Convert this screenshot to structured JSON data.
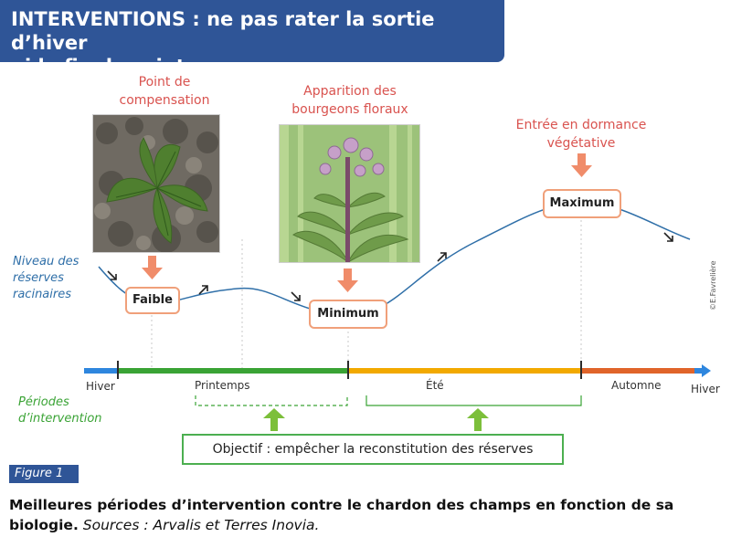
{
  "title": {
    "line1": "INTERVENTIONS : ne pas rater la sortie d’hiver",
    "line2": "ni la fin du printemps"
  },
  "stages": {
    "compensation": {
      "line1": "Point de",
      "line2": "compensation"
    },
    "bourgeons": {
      "line1": "Apparition des",
      "line2": "bourgeons floraux"
    },
    "dormance": {
      "line1": "Entrée en dormance",
      "line2": "végétative"
    }
  },
  "levels": {
    "faible": "Faible",
    "minimum": "Minimum",
    "maximum": "Maximum"
  },
  "reserves_label": {
    "line1": "Niveau des",
    "line2": "réserves",
    "line3": "racinaires"
  },
  "periods_label": {
    "line1": "Périodes",
    "line2": "d’intervention"
  },
  "seasons": {
    "hiver_start": "Hiver",
    "printemps": "Printemps",
    "ete": "Été",
    "automne": "Automne",
    "hiver_end": "Hiver"
  },
  "colors": {
    "winter": "#2e86de",
    "spring": "#3aa335",
    "summer": "#f2a900",
    "autumn": "#e0642a",
    "banner": "#2f5597",
    "accent": "#d9534f",
    "curve": "#2f6fa8"
  },
  "objective": "Objectif : empêcher la reconstitution des réserves",
  "figure_tag": "Figure 1",
  "caption": {
    "bold": "Meilleures périodes d’intervention contre le chardon des champs en fonction de sa biologie.",
    "sources": "Sources : Arvalis et Terres Inovia."
  },
  "credit": "©E.Favrelière"
}
